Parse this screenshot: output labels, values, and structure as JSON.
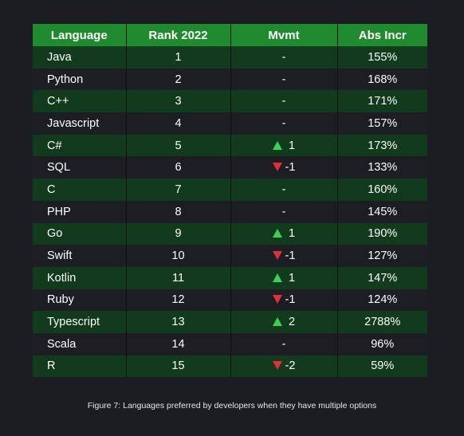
{
  "table": {
    "headers": [
      "Language",
      "Rank 2022",
      "Mvmt",
      "Abs Incr"
    ],
    "rows": [
      {
        "language": "Java",
        "rank": "1",
        "dir": "none",
        "mvmt": "-",
        "incr": "155%"
      },
      {
        "language": "Python",
        "rank": "2",
        "dir": "none",
        "mvmt": "-",
        "incr": "168%"
      },
      {
        "language": "C++",
        "rank": "3",
        "dir": "none",
        "mvmt": "-",
        "incr": "171%"
      },
      {
        "language": "Javascript",
        "rank": "4",
        "dir": "none",
        "mvmt": "-",
        "incr": "157%"
      },
      {
        "language": "C#",
        "rank": "5",
        "dir": "up",
        "mvmt": "1",
        "incr": "173%"
      },
      {
        "language": "SQL",
        "rank": "6",
        "dir": "down",
        "mvmt": "-1",
        "incr": "133%"
      },
      {
        "language": "C",
        "rank": "7",
        "dir": "none",
        "mvmt": "-",
        "incr": "160%"
      },
      {
        "language": "PHP",
        "rank": "8",
        "dir": "none",
        "mvmt": "-",
        "incr": "145%"
      },
      {
        "language": "Go",
        "rank": "9",
        "dir": "up",
        "mvmt": "1",
        "incr": "190%"
      },
      {
        "language": "Swift",
        "rank": "10",
        "dir": "down",
        "mvmt": "-1",
        "incr": "127%"
      },
      {
        "language": "Kotlin",
        "rank": "11",
        "dir": "up",
        "mvmt": "1",
        "incr": "147%"
      },
      {
        "language": "Ruby",
        "rank": "12",
        "dir": "down",
        "mvmt": "-1",
        "incr": "124%"
      },
      {
        "language": "Typescript",
        "rank": "13",
        "dir": "up",
        "mvmt": "2",
        "incr": "2788%"
      },
      {
        "language": "Scala",
        "rank": "14",
        "dir": "none",
        "mvmt": "-",
        "incr": "96%"
      },
      {
        "language": "R",
        "rank": "15",
        "dir": "down",
        "mvmt": "-2",
        "incr": "59%"
      }
    ]
  },
  "colors": {
    "header_bg": "#1f8a2e",
    "row_odd_bg": "#123a1c",
    "row_even_bg": "#1c1e23",
    "arrow_up": "#3fcf52",
    "arrow_down": "#e0303a"
  },
  "icons": {
    "up": "triangle-up-icon",
    "down": "triangle-down-icon"
  },
  "caption": "Figure 7: Languages preferred by developers when they have multiple options"
}
